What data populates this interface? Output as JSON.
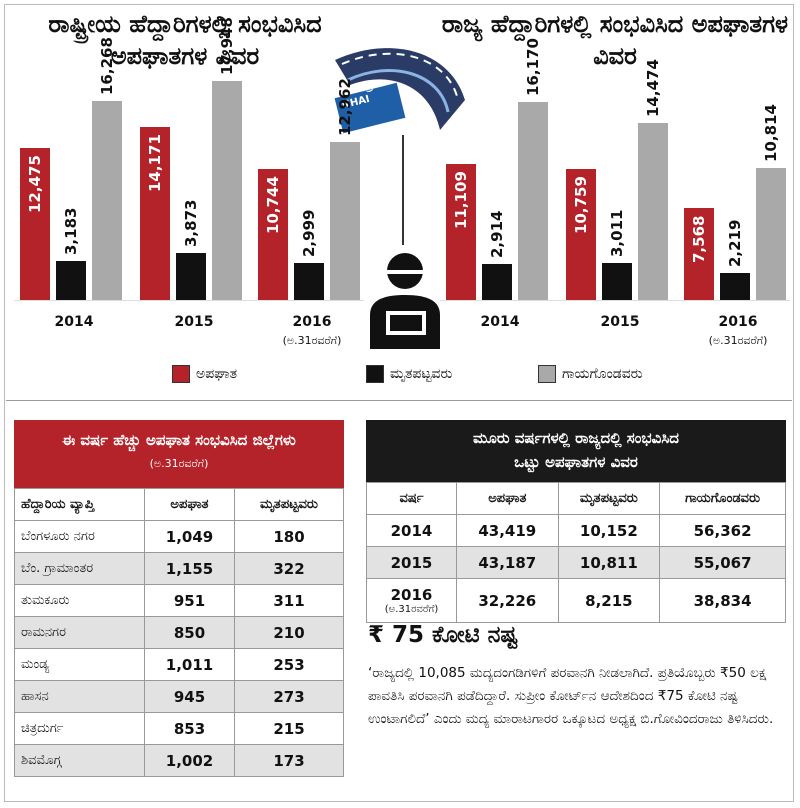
{
  "headings": {
    "national": "ರಾಷ್ಟ್ರೀಯ ಹೆದ್ದಾರಿಗಳಲ್ಲಿ ಸಂಭವಿಸಿದ ಅಪಘಾತಗಳ ವಿವರ",
    "state": "ರಾಜ್ಯ ಹೆದ್ದಾರಿಗಳಲ್ಲಿ ಸಂಭವಿಸಿದ ಅಪಘಾತಗಳ ವಿವರ"
  },
  "logo": {
    "line1": "ಭಾರಾರಾಪ್ರಾ",
    "line2": "NHAI"
  },
  "colors": {
    "accidents": "#b4232a",
    "deaths": "#111111",
    "injured": "#a9a9a9"
  },
  "chart_data": [
    {
      "type": "bar",
      "title": "ರಾಷ್ಟ್ರೀಯ ಹೆದ್ದಾರಿಗಳಲ್ಲಿ ಸಂಭವಿಸಿದ ಅಪಘಾತಗಳ ವಿವರ",
      "categories": [
        "2014",
        "2015",
        "2016"
      ],
      "category_notes": [
        "",
        "",
        "(ಅ.31ರವರೆಗೆ)"
      ],
      "series": [
        {
          "name": "ಅಪಘಾತ",
          "values": [
            12475,
            14171,
            10744
          ],
          "labels": [
            "12,475",
            "14,171",
            "10,744"
          ]
        },
        {
          "name": "ಮೃತಪಟ್ಟವರು",
          "values": [
            3183,
            3873,
            2999
          ],
          "labels": [
            "3,183",
            "3,873",
            "2,999"
          ]
        },
        {
          "name": "ಗಾಯಗೊಂಡವರು",
          "values": [
            16268,
            17948,
            12962
          ],
          "labels": [
            "16,268",
            "17,948",
            "12,962"
          ]
        }
      ]
    },
    {
      "type": "bar",
      "title": "ರಾಜ್ಯ ಹೆದ್ದಾರಿಗಳಲ್ಲಿ ಸಂಭವಿಸಿದ ಅಪಘಾತಗಳ ವಿವರ",
      "categories": [
        "2014",
        "2015",
        "2016"
      ],
      "category_notes": [
        "",
        "",
        "(ಅ.31ರವರೆಗೆ)"
      ],
      "series": [
        {
          "name": "ಅಪಘಾತ",
          "values": [
            11109,
            10759,
            7568
          ],
          "labels": [
            "11,109",
            "10,759",
            "7,568"
          ]
        },
        {
          "name": "ಮೃತಪಟ್ಟವರು",
          "values": [
            2914,
            3011,
            2219
          ],
          "labels": [
            "2,914",
            "3,011",
            "2,219"
          ]
        },
        {
          "name": "ಗಾಯಗೊಂಡವರು",
          "values": [
            16170,
            14474,
            10814
          ],
          "labels": [
            "16,170",
            "14,474",
            "10,814"
          ]
        }
      ]
    }
  ],
  "legend": [
    "ಅಪಘಾತ",
    "ಮೃತಪಟ್ಟವರು",
    "ಗಾಯಗೊಂಡವರು"
  ],
  "districts": {
    "heading": "ಈ ವರ್ಷ ಹೆಚ್ಚು ಅಪಘಾತ ಸಂಭವಿಸಿದ ಜಿಲ್ಲೆಗಳು",
    "note": "(ಅ.31ರವರೆಗೆ)",
    "columns": [
      "ಹೆದ್ದಾರಿಯ ವ್ಯಾಪ್ತಿ",
      "ಅಪಘಾತ",
      "ಮೃತಪಟ್ಟವರು"
    ],
    "rows": [
      [
        "ಬೆಂಗಳೂರು ನಗರ",
        "1,049",
        "180"
      ],
      [
        "ಬೆಂ. ಗ್ರಾಮಾಂತರ",
        "1,155",
        "322"
      ],
      [
        "ತುಮಕೂರು",
        "951",
        "311"
      ],
      [
        "ರಾಮನಗರ",
        "850",
        "210"
      ],
      [
        "ಮಂಡ್ಯ",
        "1,011",
        "253"
      ],
      [
        "ಹಾಸನ",
        "945",
        "273"
      ],
      [
        "ಚಿತ್ರದುರ್ಗ",
        "853",
        "215"
      ],
      [
        "ಶಿವಮೊಗ್ಗ",
        "1,002",
        "173"
      ]
    ]
  },
  "summary": {
    "heading1": "ಮೂರು ವರ್ಷಗಳಲ್ಲಿ ರಾಜ್ಯದಲ್ಲಿ ಸಂಭವಿಸಿದ",
    "heading2": "ಒಟ್ಟು ಅಪಘಾತಗಳ ವಿವರ",
    "columns": [
      "ವರ್ಷ",
      "ಅಪಘಾತ",
      "ಮೃತಪಟ್ಟವರು",
      "ಗಾಯಗೊಂಡವರು"
    ],
    "rows": [
      [
        "2014",
        "",
        "43,419",
        "10,152",
        "56,362"
      ],
      [
        "2015",
        "",
        "43,187",
        "10,811",
        "55,067"
      ],
      [
        "2016",
        "(ಅ.31ರವರೆಗೆ)",
        "32,226",
        "8,215",
        "38,834"
      ]
    ]
  },
  "loss": {
    "title": "₹ 75 ಕೋಟಿ ನಷ್ಟ",
    "text": "‘ರಾಜ್ಯದಲ್ಲಿ 10,085 ಮದ್ಯದಂಗಡಿಗಳಿಗೆ ಪರವಾನಗಿ ನೀಡಲಾಗಿದೆ. ಪ್ರತಿಯೊಬ್ಬರು ₹50 ಲಕ್ಷ ಪಾವತಿಸಿ ಪರವಾನಗಿ ಪಡೆದಿದ್ದಾರೆ. ಸುಪ್ರೀಂ ಕೋರ್ಟ್‌ನ ಆದೇಶದಿಂದ ₹75 ಕೋಟಿ ನಷ್ಟ ಉಂಟಾಗಲಿದೆ’ ಎಂದು ಮದ್ಯ ಮಾರಾಟಗಾರರ ಒಕ್ಕೂಟದ ಅಧ್ಯಕ್ಷ ಬಿ.ಗೋವಿಂದರಾಜು ತಿಳಿಸಿದರು."
  }
}
